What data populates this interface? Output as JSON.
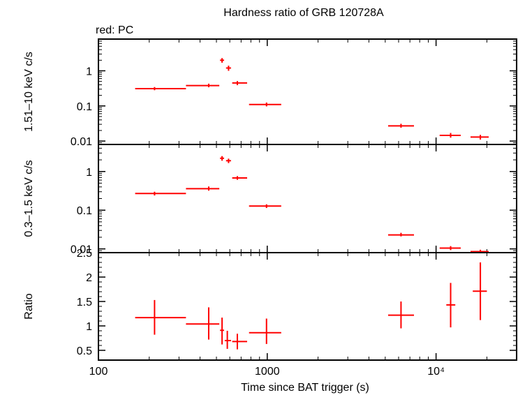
{
  "chart_data": {
    "type": "scatter",
    "title": "Hardness ratio of GRB 120728A",
    "subtitle": "red: PC",
    "xlabel": "Time since BAT trigger (s)",
    "xscale": "log",
    "xlim": [
      100,
      30000
    ],
    "x_ticks": [
      {
        "value": 100,
        "label": "100"
      },
      {
        "value": 1000,
        "label": "1000"
      },
      {
        "value": 10000,
        "label": "10⁴"
      }
    ],
    "series_color": "#ff0000",
    "panels": [
      {
        "ylabel": "1.51–10 keV c/s",
        "yscale": "log",
        "ylim": [
          0.008,
          8
        ],
        "y_ticks": [
          {
            "value": 0.01,
            "label": "0.01"
          },
          {
            "value": 0.1,
            "label": "0.1"
          },
          {
            "value": 1,
            "label": "1"
          }
        ],
        "points": [
          {
            "x": 215,
            "xlo": 165,
            "xhi": 330,
            "y": 0.31,
            "ylo": 0.28,
            "yhi": 0.345
          },
          {
            "x": 450,
            "xlo": 330,
            "xhi": 520,
            "y": 0.38,
            "ylo": 0.34,
            "yhi": 0.43
          },
          {
            "x": 540,
            "xlo": 525,
            "xhi": 555,
            "y": 2.0,
            "ylo": 1.7,
            "yhi": 2.3
          },
          {
            "x": 590,
            "xlo": 570,
            "xhi": 610,
            "y": 1.2,
            "ylo": 1.0,
            "yhi": 1.4
          },
          {
            "x": 665,
            "xlo": 620,
            "xhi": 760,
            "y": 0.45,
            "ylo": 0.39,
            "yhi": 0.51
          },
          {
            "x": 990,
            "xlo": 780,
            "xhi": 1210,
            "y": 0.11,
            "ylo": 0.097,
            "yhi": 0.125
          },
          {
            "x": 6200,
            "xlo": 5200,
            "xhi": 7400,
            "y": 0.027,
            "ylo": 0.024,
            "yhi": 0.031
          },
          {
            "x": 12200,
            "xlo": 10500,
            "xhi": 14000,
            "y": 0.0145,
            "ylo": 0.0125,
            "yhi": 0.017
          },
          {
            "x": 18300,
            "xlo": 16000,
            "xhi": 20500,
            "y": 0.013,
            "ylo": 0.011,
            "yhi": 0.015
          }
        ]
      },
      {
        "ylabel": "0.3–1.5 keV c/s",
        "yscale": "log",
        "ylim": [
          0.008,
          5
        ],
        "y_ticks": [
          {
            "value": 0.01,
            "label": "0.01"
          },
          {
            "value": 0.1,
            "label": "0.1"
          },
          {
            "value": 1,
            "label": "1"
          }
        ],
        "points": [
          {
            "x": 215,
            "xlo": 165,
            "xhi": 330,
            "y": 0.27,
            "ylo": 0.24,
            "yhi": 0.3
          },
          {
            "x": 450,
            "xlo": 330,
            "xhi": 520,
            "y": 0.36,
            "ylo": 0.32,
            "yhi": 0.41
          },
          {
            "x": 540,
            "xlo": 525,
            "xhi": 555,
            "y": 2.2,
            "ylo": 1.9,
            "yhi": 2.5
          },
          {
            "x": 590,
            "xlo": 570,
            "xhi": 610,
            "y": 1.9,
            "ylo": 1.65,
            "yhi": 2.15
          },
          {
            "x": 665,
            "xlo": 620,
            "xhi": 760,
            "y": 0.68,
            "ylo": 0.61,
            "yhi": 0.76
          },
          {
            "x": 990,
            "xlo": 780,
            "xhi": 1210,
            "y": 0.128,
            "ylo": 0.114,
            "yhi": 0.142
          },
          {
            "x": 6200,
            "xlo": 5200,
            "xhi": 7400,
            "y": 0.023,
            "ylo": 0.021,
            "yhi": 0.026
          },
          {
            "x": 12200,
            "xlo": 10500,
            "xhi": 14000,
            "y": 0.0105,
            "ylo": 0.0093,
            "yhi": 0.0118
          },
          {
            "x": 18300,
            "xlo": 16000,
            "xhi": 20500,
            "y": 0.0085,
            "ylo": 0.0081,
            "yhi": 0.0095
          }
        ]
      },
      {
        "ylabel": "Ratio",
        "yscale": "linear",
        "ylim": [
          0.3,
          2.5
        ],
        "y_ticks": [
          {
            "value": 0.5,
            "label": "0.5"
          },
          {
            "value": 1,
            "label": "1"
          },
          {
            "value": 1.5,
            "label": "1.5"
          },
          {
            "value": 2,
            "label": "2"
          },
          {
            "value": 2.5,
            "label": "2.5"
          }
        ],
        "points": [
          {
            "x": 215,
            "xlo": 165,
            "xhi": 330,
            "y": 1.17,
            "ylo": 0.82,
            "yhi": 1.53
          },
          {
            "x": 450,
            "xlo": 330,
            "xhi": 520,
            "y": 1.04,
            "ylo": 0.72,
            "yhi": 1.38
          },
          {
            "x": 540,
            "xlo": 525,
            "xhi": 555,
            "y": 0.91,
            "ylo": 0.62,
            "yhi": 1.17
          },
          {
            "x": 580,
            "xlo": 560,
            "xhi": 610,
            "y": 0.7,
            "ylo": 0.53,
            "yhi": 0.9
          },
          {
            "x": 665,
            "xlo": 620,
            "xhi": 760,
            "y": 0.68,
            "ylo": 0.52,
            "yhi": 0.84
          },
          {
            "x": 990,
            "xlo": 780,
            "xhi": 1210,
            "y": 0.86,
            "ylo": 0.63,
            "yhi": 1.15
          },
          {
            "x": 6200,
            "xlo": 5200,
            "xhi": 7400,
            "y": 1.22,
            "ylo": 0.95,
            "yhi": 1.5
          },
          {
            "x": 12200,
            "xlo": 11500,
            "xhi": 13000,
            "y": 1.43,
            "ylo": 0.97,
            "yhi": 1.88
          },
          {
            "x": 18300,
            "xlo": 16500,
            "xhi": 20000,
            "y": 1.71,
            "ylo": 1.12,
            "yhi": 2.3
          }
        ]
      }
    ]
  }
}
